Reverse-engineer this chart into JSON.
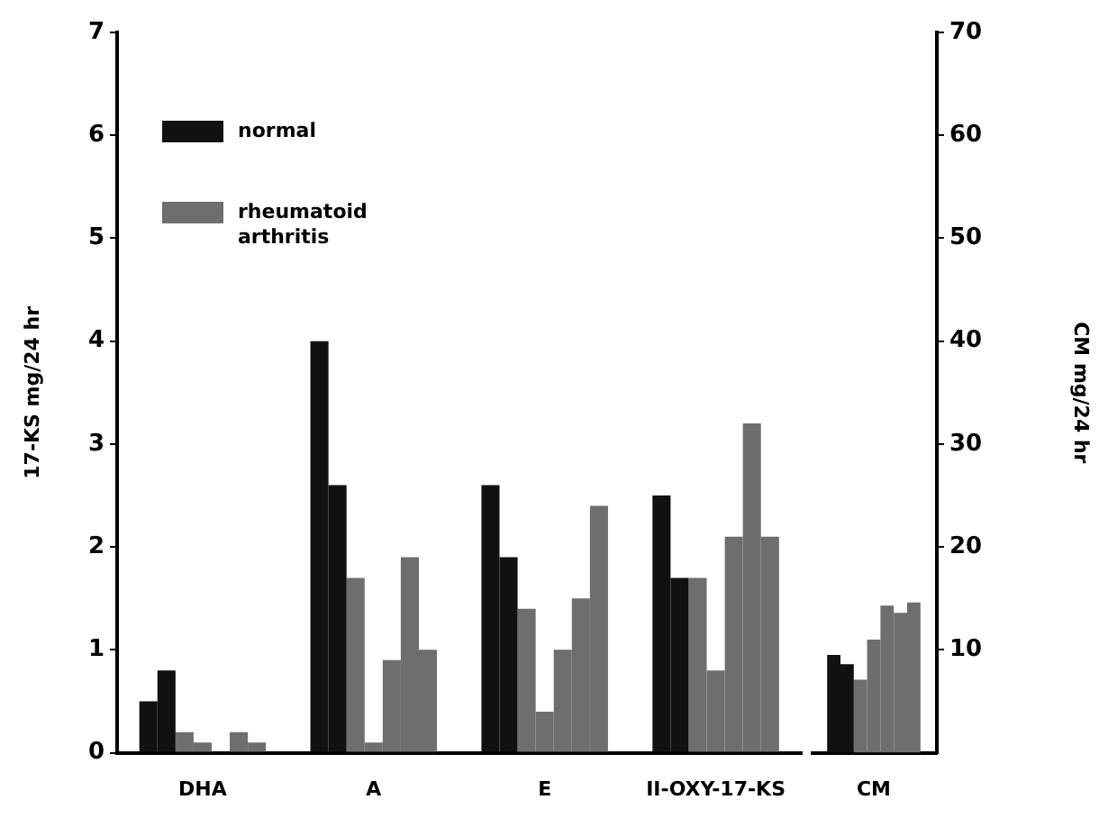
{
  "chart_data": [
    {
      "type": "bar",
      "ylabel": "17-KS mg/24 hr",
      "categories": [
        "DHA",
        "A",
        "E",
        "II-OXY-17-KS"
      ],
      "ylim": [
        0,
        7
      ],
      "yticks": [
        0,
        1,
        2,
        3,
        4,
        5,
        6,
        7
      ],
      "grid": false,
      "legend": "top left",
      "series": [
        {
          "name": "normal",
          "color": "#111111",
          "values": [
            0.5,
            4.0,
            2.6,
            2.5
          ]
        },
        {
          "color": "#111111",
          "values": [
            0.8,
            2.6,
            1.9,
            1.7
          ]
        },
        {
          "name": "rheumatoid arthritis",
          "color": "#6e6e6e",
          "values": [
            0.2,
            1.7,
            1.4,
            1.7
          ]
        },
        {
          "color": "#6e6e6e",
          "values": [
            0.1,
            0.1,
            0.4,
            0.8
          ]
        },
        {
          "color": "#6e6e6e",
          "values": [
            0,
            0.9,
            1.0,
            2.1
          ]
        },
        {
          "color": "#6e6e6e",
          "values": [
            0.2,
            1.9,
            1.5,
            3.2
          ]
        },
        {
          "color": "#6e6e6e",
          "values": [
            0.1,
            1.0,
            2.4,
            2.1
          ]
        }
      ]
    },
    {
      "type": "bar",
      "y2label": "CM mg/24 hr",
      "categories": [
        "CM"
      ],
      "y2lim": [
        0,
        70
      ],
      "y2ticks": [
        10,
        20,
        30,
        40,
        50,
        60,
        70
      ],
      "grid": false,
      "series": [
        {
          "color": "#111111",
          "values": [
            9.5
          ],
          "axis": "y2"
        },
        {
          "color": "#111111",
          "values": [
            8.6
          ],
          "axis": "y2"
        },
        {
          "color": "#6e6e6e",
          "values": [
            7.1
          ],
          "axis": "y2"
        },
        {
          "color": "#6e6e6e",
          "values": [
            11
          ],
          "axis": "y2"
        },
        {
          "color": "#6e6e6e",
          "values": [
            14.3
          ],
          "axis": "y2"
        },
        {
          "color": "#6e6e6e",
          "values": [
            13.6
          ],
          "axis": "y2"
        },
        {
          "color": "#6e6e6e",
          "values": [
            14.6
          ],
          "axis": "y2"
        }
      ]
    }
  ]
}
